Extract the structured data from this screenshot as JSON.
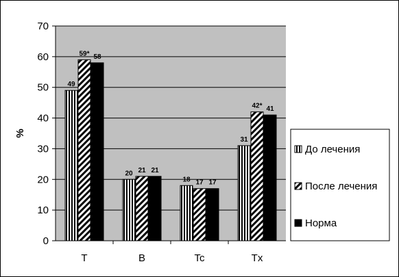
{
  "chart_data": {
    "type": "bar",
    "ylabel": "%",
    "ylim": [
      0,
      70
    ],
    "yticks": [
      0,
      10,
      20,
      30,
      40,
      50,
      60,
      70
    ],
    "grid": true,
    "legend_position": "right",
    "categories": [
      "T",
      "B",
      "Tc",
      "Tx"
    ],
    "series": [
      {
        "name": "До лечения",
        "values": [
          49,
          20,
          18,
          31
        ],
        "labels": [
          "49",
          "20",
          "18",
          "31"
        ],
        "pattern": "vertical-stripes"
      },
      {
        "name": "После лечения",
        "values": [
          59,
          21,
          17,
          42
        ],
        "labels": [
          "59*",
          "21",
          "17",
          "42*"
        ],
        "pattern": "diagonal-stripes"
      },
      {
        "name": "Норма",
        "values": [
          58,
          21,
          17,
          41
        ],
        "labels": [
          "58",
          "21",
          "17",
          "41"
        ],
        "pattern": "solid"
      }
    ],
    "colors": {
      "plot_background": "#c0c0c0",
      "grid": "#000000",
      "bar": "#000000"
    }
  }
}
